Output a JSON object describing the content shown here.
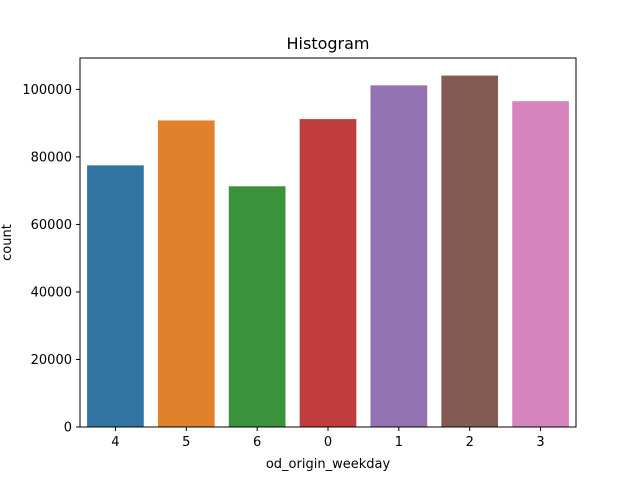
{
  "chart_data": {
    "type": "bar",
    "title": "Histogram",
    "xlabel": "od_origin_weekday",
    "ylabel": "count",
    "categories": [
      "4",
      "5",
      "6",
      "0",
      "1",
      "2",
      "3"
    ],
    "values": [
      77500,
      90800,
      71300,
      91200,
      101200,
      104100,
      96500
    ],
    "colors": [
      "#3274a1",
      "#e1812c",
      "#3a923a",
      "#c03d3e",
      "#9372b2",
      "#845b53",
      "#d684bd"
    ],
    "ylim": [
      0,
      109300
    ],
    "yticks": [
      0,
      20000,
      40000,
      60000,
      80000,
      100000
    ],
    "grid": false,
    "legend": "none"
  }
}
